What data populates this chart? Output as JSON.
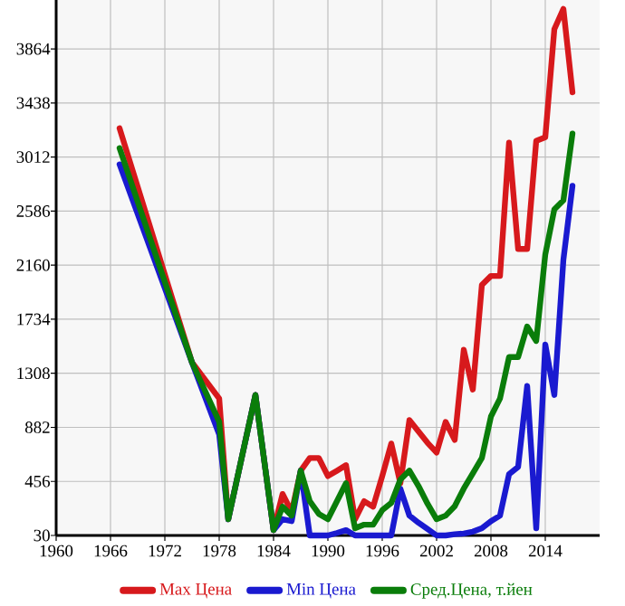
{
  "chart_data": {
    "type": "line",
    "x": [
      1967,
      1975,
      1978,
      1979,
      1982,
      1984,
      1985,
      1986,
      1987,
      1988,
      1989,
      1990,
      1991,
      1992,
      1993,
      1994,
      1995,
      1996,
      1997,
      1998,
      1999,
      2000,
      2001,
      2002,
      2003,
      2004,
      2005,
      2006,
      2007,
      2008,
      2009,
      2010,
      2011,
      2012,
      2013,
      2014,
      2015,
      2016,
      2017
    ],
    "series": [
      {
        "name": "Max Цена",
        "color": "#d7191c",
        "values": [
          3239,
          1393,
          1109,
          158,
          1137,
          72,
          357,
          215,
          541,
          640,
          640,
          498,
          540,
          584,
          158,
          300,
          257,
          498,
          754,
          442,
          939,
          850,
          760,
          683,
          925,
          783,
          1493,
          1180,
          2004,
          2075,
          2075,
          3126,
          2288,
          2288,
          3140,
          3168,
          4020,
          4180,
          3523
        ]
      },
      {
        "name": "Min Цена",
        "color": "#1a1ad0",
        "values": [
          2955,
          1393,
          825,
          158,
          1137,
          72,
          158,
          143,
          541,
          30,
          30,
          30,
          50,
          72,
          30,
          30,
          30,
          30,
          30,
          399,
          186,
          130,
          80,
          30,
          30,
          40,
          45,
          60,
          87,
          143,
          186,
          513,
          570,
          1208,
          87,
          1535,
          1137,
          2203,
          2785
        ]
      },
      {
        "name": "Сред.Цена, т.йен",
        "color": "#0a7d0a",
        "values": [
          3083,
          1393,
          925,
          158,
          1137,
          72,
          257,
          186,
          541,
          300,
          200,
          158,
          300,
          442,
          87,
          115,
          115,
          229,
          286,
          470,
          541,
          420,
          280,
          158,
          186,
          260,
          399,
          520,
          640,
          967,
          1109,
          1436,
          1436,
          1677,
          1563,
          2245,
          2600,
          2671,
          3197
        ]
      }
    ],
    "xlim": [
      1960,
      2020
    ],
    "xticks": [
      1960,
      1966,
      1972,
      1978,
      1984,
      1990,
      1996,
      2002,
      2008,
      2014
    ],
    "ylim": [
      30,
      4250
    ],
    "yticks": [
      30,
      456,
      882,
      1308,
      1734,
      2160,
      2586,
      3012,
      3438,
      3864
    ],
    "grid": true,
    "legend": "bottom",
    "marker": "none",
    "line_style": "solid"
  }
}
